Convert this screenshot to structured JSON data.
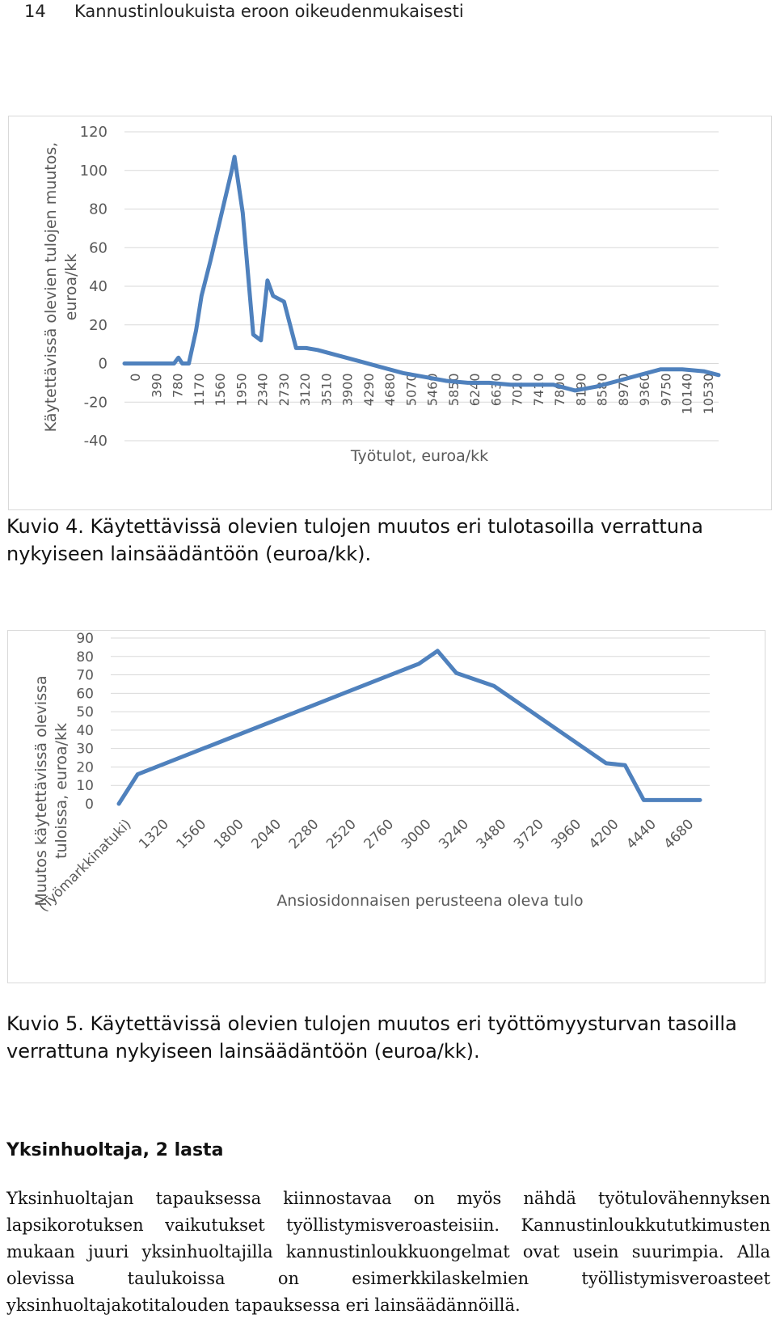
{
  "header": {
    "page_number": "14",
    "running_title": "Kannustinloukuista eroon oikeudenmukaisesti"
  },
  "chart_data": [
    {
      "type": "line",
      "xlabel": "Työtulot, euroa/kk",
      "ylabel": "Käytettävissä olevien tulojen muutos, euroa/kk",
      "ylabel_lines": [
        "Käytettävissä olevien tulojen muutos,",
        "euroa/kk"
      ],
      "ylim": [
        -40,
        120
      ],
      "yticks": [
        120,
        100,
        80,
        60,
        40,
        20,
        0,
        -20,
        -40
      ],
      "xlim": [
        0,
        10800
      ],
      "xticks": [
        "0",
        "390",
        "780",
        "1170",
        "1560",
        "1950",
        "2340",
        "2730",
        "3120",
        "3510",
        "3900",
        "4290",
        "4680",
        "5070",
        "5460",
        "5850",
        "6240",
        "6630",
        "7020",
        "7410",
        "7800",
        "8190",
        "8580",
        "8970",
        "9360",
        "9750",
        "10140",
        "10530"
      ],
      "grid": true,
      "line_color": "#4f81bd",
      "series": [
        {
          "x": [
            0,
            390,
            780,
            900,
            980,
            1050,
            1170,
            1300,
            1400,
            1560,
            1950,
            2000,
            2150,
            2340,
            2480,
            2600,
            2700,
            2900,
            3120,
            3300,
            3510,
            3900,
            4290,
            4680,
            5070,
            5460,
            5850,
            6240,
            6630,
            7020,
            7410,
            7800,
            8190,
            8580,
            8970,
            9360,
            9750,
            10140,
            10530,
            10800
          ],
          "y": [
            0,
            0,
            0,
            0,
            3,
            0,
            0,
            17,
            35,
            53,
            100,
            107,
            78,
            15,
            12,
            43,
            35,
            32,
            8,
            8,
            7,
            4,
            1,
            -2,
            -5,
            -7,
            -9,
            -10,
            -10,
            -11,
            -11,
            -11,
            -14,
            -12,
            -9,
            -6,
            -3,
            -3,
            -4,
            -6
          ]
        }
      ]
    },
    {
      "type": "line",
      "xlabel": "Ansiosidonnaisen perusteena oleva tulo",
      "ylabel": "Muutos käytettävissä olevissa tuloissa, euroa/kk",
      "ylabel_lines": [
        "Muutos käytettävissä olevissa",
        "tuloissa, euroa/kk"
      ],
      "ylim": [
        0,
        90
      ],
      "yticks": [
        90,
        80,
        70,
        60,
        50,
        40,
        30,
        20,
        10,
        0
      ],
      "categories": [
        "(Työmarkkinatuki)",
        "1320",
        "1560",
        "1800",
        "2040",
        "2280",
        "2520",
        "2760",
        "3000",
        "3240",
        "3480",
        "3720",
        "3960",
        "4200",
        "4440",
        "4680"
      ],
      "grid": true,
      "line_color": "#4f81bd",
      "series": [
        {
          "x": [
            0,
            0.5,
            1,
            2,
            3,
            4,
            5,
            6,
            7,
            8,
            8.5,
            9,
            10,
            11,
            12,
            13,
            13.5,
            14,
            15,
            15.5
          ],
          "y": [
            0,
            16,
            20,
            28,
            36,
            44,
            52,
            60,
            68,
            76,
            83,
            71,
            64,
            50,
            36,
            22,
            21,
            2,
            2,
            2
          ]
        }
      ]
    }
  ],
  "captions": {
    "figure4": "Kuvio 4. Käytettävissä olevien tulojen muutos eri tulotasoilla verrattuna nykyiseen lainsäädäntöön (euroa/kk).",
    "figure5": "Kuvio 5. Käytettävissä olevien tulojen muutos eri työttömyysturvan tasoilla verrattuna nykyiseen lainsäädäntöön (euroa/kk)."
  },
  "section": {
    "heading": "Yksinhuoltaja, 2 lasta",
    "paragraph": "Yksinhuoltajan tapauksessa kiinnostavaa on myös nähdä työtulovähennyksen lapsikorotuksen vaikutukset työllistymisveroasteisiin. Kannustinloukkututkimusten mukaan juuri yksinhuoltajilla kannustinloukkuongelmat ovat usein suurimpia. Alla olevissa taulukoissa on esimerkkilaskelmien työllistymisveroasteet yksinhuoltajakotitalouden tapauksessa eri lainsäädännöillä."
  }
}
